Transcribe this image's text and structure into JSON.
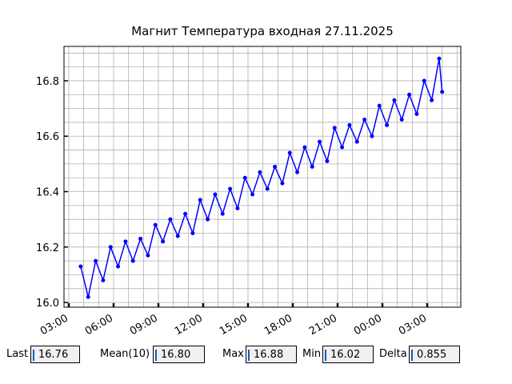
{
  "chart_data": {
    "type": "line",
    "title": "Магнит Температура входная 27.11.2025",
    "x": [
      3.8,
      4.3,
      4.8,
      5.3,
      5.8,
      6.3,
      6.8,
      7.3,
      7.8,
      8.3,
      8.8,
      9.3,
      9.8,
      10.3,
      10.8,
      11.3,
      11.8,
      12.3,
      12.8,
      13.3,
      13.8,
      14.3,
      14.8,
      15.3,
      15.8,
      16.3,
      16.8,
      17.3,
      17.8,
      18.3,
      18.8,
      19.3,
      19.8,
      20.3,
      20.8,
      21.3,
      21.8,
      22.3,
      22.8,
      23.3,
      23.8,
      24.3,
      24.8,
      25.3,
      25.8,
      26.3,
      26.8,
      27.3,
      27.8,
      28.0
    ],
    "series": [
      {
        "color": "#0000ff",
        "values": [
          16.13,
          16.02,
          16.15,
          16.08,
          16.2,
          16.13,
          16.22,
          16.15,
          16.23,
          16.17,
          16.28,
          16.22,
          16.3,
          16.24,
          16.32,
          16.25,
          16.37,
          16.3,
          16.39,
          16.32,
          16.41,
          16.34,
          16.45,
          16.39,
          16.47,
          16.41,
          16.49,
          16.43,
          16.54,
          16.47,
          16.56,
          16.49,
          16.58,
          16.51,
          16.63,
          16.56,
          16.64,
          16.58,
          16.66,
          16.6,
          16.71,
          16.64,
          16.73,
          16.66,
          16.75,
          16.68,
          16.8,
          16.73,
          16.88,
          16.76
        ]
      }
    ],
    "xlim": [
      2.68,
      29.25
    ],
    "xticks": [
      {
        "value": 3,
        "label": "03:00"
      },
      {
        "value": 6,
        "label": "06:00"
      },
      {
        "value": 9,
        "label": "09:00"
      },
      {
        "value": 12,
        "label": "12:00"
      },
      {
        "value": 15,
        "label": "15:00"
      },
      {
        "value": 18,
        "label": "18:00"
      },
      {
        "value": 21,
        "label": "21:00"
      },
      {
        "value": 24,
        "label": "00:00"
      },
      {
        "value": 27,
        "label": "03:00"
      }
    ],
    "xminorticks": [
      3,
      4,
      5,
      6,
      7,
      8,
      9,
      10,
      11,
      12,
      13,
      14,
      15,
      16,
      17,
      18,
      19,
      20,
      21,
      22,
      23,
      24,
      25,
      26,
      27,
      28,
      29
    ],
    "ylim": [
      15.983,
      16.924
    ],
    "yticks": [
      {
        "value": 16,
        "label": "16.0"
      },
      16.2,
      16.4,
      16.6,
      16.8
    ],
    "yminorticks": [
      16.0,
      16.05,
      16.1,
      16.15,
      16.2,
      16.25,
      16.3,
      16.35,
      16.4,
      16.45,
      16.5,
      16.55,
      16.6,
      16.65,
      16.7,
      16.75,
      16.8,
      16.85,
      16.9
    ],
    "grid": true
  },
  "fields": [
    {
      "label": "Last",
      "value": "16.76"
    },
    {
      "label": "Mean(10)",
      "value": "16.80"
    },
    {
      "label": "Max",
      "value": "16.88"
    },
    {
      "label": "Min",
      "value": "16.02"
    },
    {
      "label": "Delta",
      "value": "0.855"
    }
  ]
}
